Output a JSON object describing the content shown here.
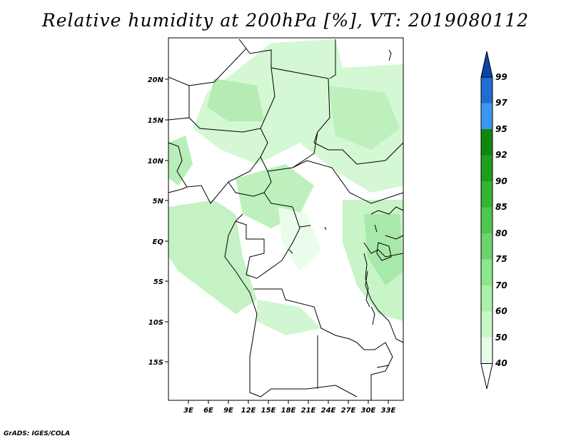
{
  "title": "Relative humidity at 200hPa [%], VT: 2019080112",
  "credit": "GrADS: IGES/COLA",
  "map": {
    "lon_labels": [
      "3E",
      "6E",
      "9E",
      "12E",
      "15E",
      "18E",
      "21E",
      "24E",
      "27E",
      "30E",
      "33E"
    ],
    "lat_labels": [
      "20N",
      "15N",
      "10N",
      "5N",
      "EQ",
      "5S",
      "10S",
      "15S"
    ],
    "lon_range": [
      0,
      35
    ],
    "lat_range": [
      -20,
      25
    ],
    "units": "%"
  },
  "colorbar": {
    "labels": [
      "40",
      "50",
      "60",
      "70",
      "75",
      "80",
      "85",
      "90",
      "92",
      "95",
      "97",
      "99"
    ],
    "colors": [
      "#ffffff",
      "#e6fce6",
      "#c8f8c8",
      "#aaf0aa",
      "#8ce68c",
      "#6ed26e",
      "#4cc84c",
      "#32b432",
      "#1e9e1e",
      "#0f870f",
      "#3c96f0",
      "#1e6ed2",
      "#0a46aa"
    ]
  }
}
